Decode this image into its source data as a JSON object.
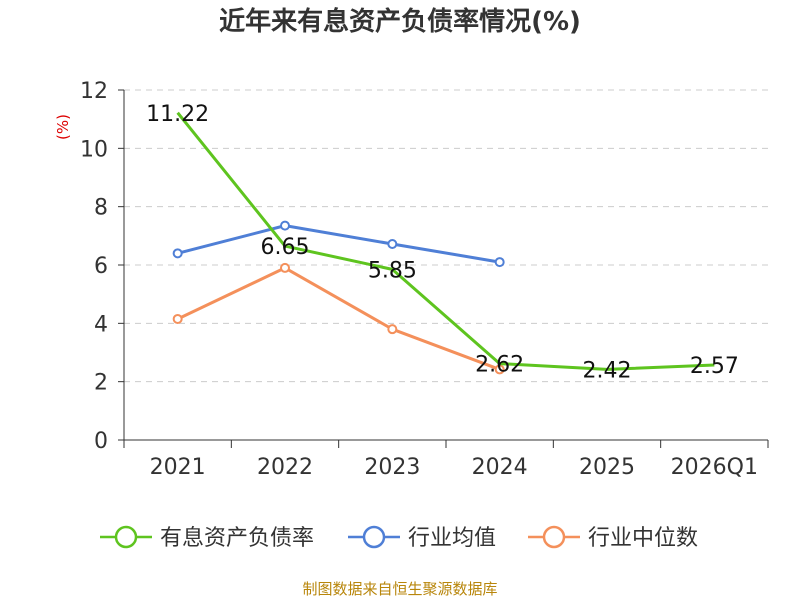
{
  "chart_data": {
    "type": "line",
    "title": "近年来有息资产负债率情况(%)",
    "ylabel": "(%)",
    "xlabel": "",
    "categories": [
      "2021",
      "2022",
      "2023",
      "2024",
      "2025",
      "2026Q1"
    ],
    "ylim": [
      0,
      12
    ],
    "yticks": [
      "0",
      "2",
      "4",
      "6",
      "8",
      "10",
      "12"
    ],
    "grid": true,
    "legend_position": "bottom",
    "series": [
      {
        "name": "有息资产负债率",
        "color": "#5ec41f",
        "values": [
          11.22,
          6.65,
          5.85,
          2.62,
          2.42,
          2.57
        ],
        "labels": [
          "11.22",
          "6.65",
          "5.85",
          "2.62",
          "2.42",
          "2.57"
        ],
        "marker": "none"
      },
      {
        "name": "行业均值",
        "color": "#4f7fd6",
        "values": [
          6.4,
          7.35,
          6.72,
          6.1,
          null,
          null
        ],
        "marker": "circle"
      },
      {
        "name": "行业中位数",
        "color": "#f4905b",
        "values": [
          4.15,
          5.9,
          3.8,
          2.42,
          null,
          null
        ],
        "marker": "circle"
      }
    ]
  },
  "source": "制图数据来自恒生聚源数据库"
}
